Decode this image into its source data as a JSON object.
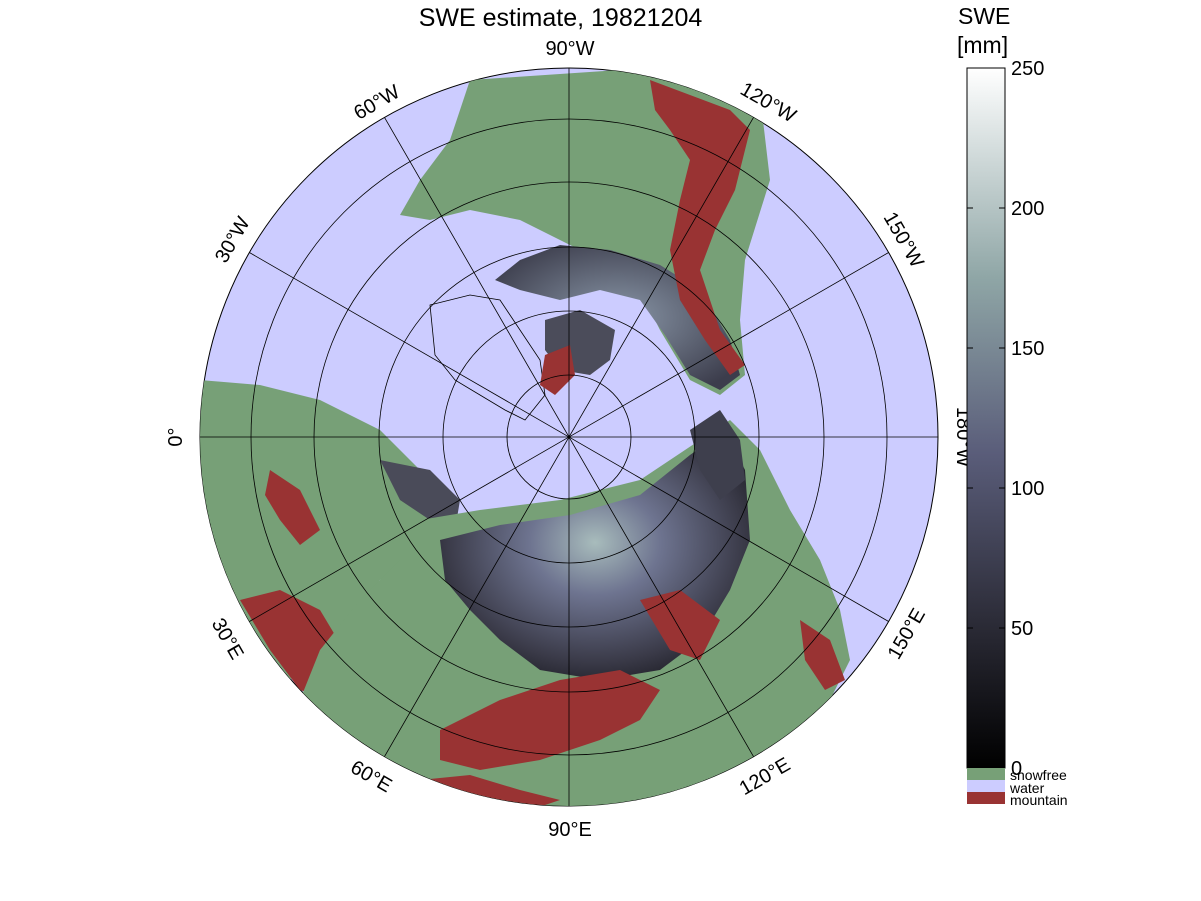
{
  "title": "SWE estimate, 19821204",
  "colorbar": {
    "title_line1": "SWE",
    "title_line2": "[mm]",
    "ticks": [
      "250",
      "200",
      "150",
      "100",
      "50",
      "0"
    ],
    "range": [
      0,
      250
    ],
    "categories": [
      {
        "label": "snowfree",
        "color": "#77a077"
      },
      {
        "label": "water",
        "color": "#ccccff"
      },
      {
        "label": "mountain",
        "color": "#993333"
      }
    ]
  },
  "longitude_labels": {
    "top": "90°W",
    "w60": "60°W",
    "w30": "30°W",
    "zero": "0°",
    "w120": "120°W",
    "w150": "150°W",
    "w180": "180°W",
    "e30": "30°E",
    "e60": "60°E",
    "e90": "90°E",
    "e120": "120°E",
    "e150": "150°E"
  },
  "colors": {
    "water": "#ccccff",
    "snowfree": "#77a077",
    "mountain": "#993333",
    "swe_low": "#0a0a12",
    "swe_mid": "#666b8c",
    "swe_high": "#f5fbfb"
  }
}
